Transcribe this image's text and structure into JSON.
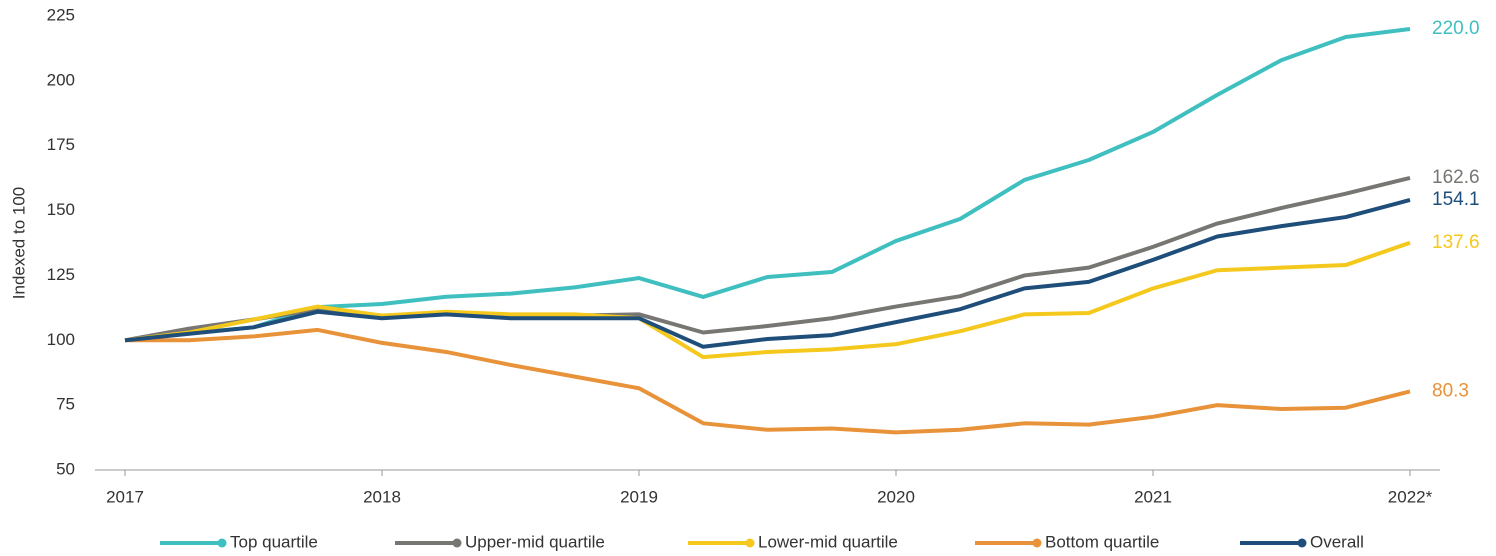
{
  "chart_data": {
    "type": "line",
    "y_label": "Indexed to 100",
    "categories": [
      "2017",
      null,
      null,
      null,
      "2018",
      null,
      null,
      null,
      "2019",
      null,
      null,
      null,
      "2020",
      null,
      null,
      null,
      "2021",
      null,
      null,
      null,
      "2022*"
    ],
    "ylim": [
      50,
      225
    ],
    "yticks": [
      50,
      75,
      100,
      125,
      150,
      175,
      200,
      225
    ],
    "legend": "bottom",
    "series": [
      {
        "name": "Top quartile",
        "color": "#3fbfbf",
        "values": [
          100,
          102.7,
          105,
          112.8,
          114,
          116.8,
          118,
          120.4,
          124,
          116.7,
          124.4,
          126.3,
          138.3,
          146.8,
          161.8,
          169.5,
          180.3,
          194.6,
          208,
          216.9,
          220
        ],
        "value_labels": [
          null,
          null,
          null,
          null,
          null,
          null,
          null,
          null,
          null,
          null,
          null,
          null,
          null,
          null,
          null,
          null,
          null,
          null,
          null,
          null,
          "220.0"
        ]
      },
      {
        "name": "Upper-mid quartile",
        "color": "#777672",
        "values": [
          100,
          104.5,
          108,
          112,
          109.5,
          110.5,
          109.5,
          109.5,
          110,
          103,
          105.5,
          108.5,
          113,
          117,
          125,
          128,
          136,
          145,
          151,
          156.5,
          162.6
        ],
        "value_labels": [
          null,
          null,
          null,
          null,
          null,
          null,
          null,
          null,
          null,
          null,
          null,
          null,
          null,
          null,
          null,
          null,
          null,
          null,
          null,
          null,
          "162.6"
        ]
      },
      {
        "name": "Lower-mid quartile",
        "color": "#f4c81c",
        "values": [
          100,
          103,
          108,
          113,
          109.5,
          111,
          110,
          110,
          108.5,
          93.5,
          95.5,
          96.5,
          98.5,
          103.5,
          110,
          110.5,
          120,
          127,
          128,
          129,
          137.6
        ],
        "value_labels": [
          null,
          null,
          null,
          null,
          null,
          null,
          null,
          null,
          null,
          null,
          null,
          null,
          null,
          null,
          null,
          null,
          null,
          null,
          null,
          null,
          "137.6"
        ]
      },
      {
        "name": "Bottom quartile",
        "color": "#e8923a",
        "values": [
          100,
          100,
          101.5,
          104,
          99,
          95.5,
          90.5,
          86,
          81.5,
          68,
          65.5,
          66,
          64.5,
          65.5,
          68,
          67.5,
          70.5,
          75,
          73.5,
          74,
          80.3
        ],
        "value_labels": [
          null,
          null,
          null,
          null,
          null,
          null,
          null,
          null,
          null,
          null,
          null,
          null,
          null,
          null,
          null,
          null,
          null,
          null,
          null,
          null,
          "80.3"
        ]
      },
      {
        "name": "Overall",
        "color": "#1f4e7a",
        "values": [
          100,
          102.5,
          105,
          111,
          108.5,
          110,
          108.5,
          108.5,
          108.5,
          97.5,
          100.5,
          102,
          107,
          112,
          120,
          122.5,
          131,
          140,
          144,
          147.5,
          154.1
        ],
        "value_labels": [
          null,
          null,
          null,
          null,
          null,
          null,
          null,
          null,
          null,
          null,
          null,
          null,
          null,
          null,
          null,
          null,
          null,
          null,
          null,
          null,
          "154.1"
        ]
      }
    ]
  }
}
